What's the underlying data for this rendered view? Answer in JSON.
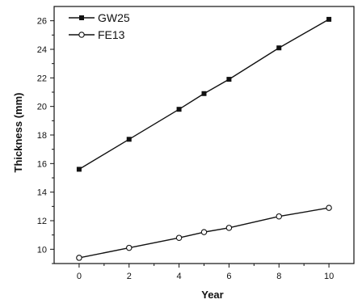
{
  "chart_data": {
    "type": "line",
    "title": "",
    "xlabel": "Year",
    "ylabel": "Thickness (mm)",
    "xlim": [
      -1,
      11
    ],
    "ylim": [
      9,
      27
    ],
    "xticks": [
      0,
      2,
      4,
      6,
      8,
      10
    ],
    "yticks": [
      10,
      12,
      14,
      16,
      18,
      20,
      22,
      24,
      26
    ],
    "grid": false,
    "legend_position": "top-left",
    "series": [
      {
        "name": "GW25",
        "marker": "filled-square",
        "color": "#111111",
        "x": [
          0,
          2,
          4,
          5,
          6,
          8,
          10
        ],
        "y": [
          15.6,
          17.7,
          19.8,
          20.9,
          21.9,
          24.1,
          26.1
        ]
      },
      {
        "name": "FE13",
        "marker": "open-circle",
        "color": "#111111",
        "x": [
          0,
          2,
          4,
          5,
          6,
          8,
          10
        ],
        "y": [
          9.4,
          10.1,
          10.8,
          11.2,
          11.5,
          12.3,
          12.9
        ]
      }
    ]
  }
}
